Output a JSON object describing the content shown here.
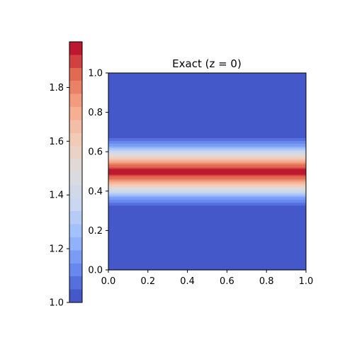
{
  "chart_data": {
    "type": "heatmap",
    "title": "Exact (z = 0)",
    "xlabel": "",
    "ylabel": "",
    "xlim": [
      0.0,
      1.0
    ],
    "ylim": [
      0.0,
      1.0
    ],
    "x_ticks": [
      "0.0",
      "0.2",
      "0.4",
      "0.6",
      "0.8",
      "1.0"
    ],
    "y_ticks": [
      "0.0",
      "0.2",
      "0.4",
      "0.6",
      "0.8",
      "1.0"
    ],
    "colormap": "coolwarm",
    "colormap_stops": [
      "#3b4cc0",
      "#6788ee",
      "#9abbff",
      "#c9d7f0",
      "#dddcdc",
      "#f2cbb7",
      "#f7a889",
      "#e26952",
      "#b40426"
    ],
    "colorbar": {
      "range": [
        1.0,
        1.97
      ],
      "ticks": [
        "1.0",
        "1.2",
        "1.4",
        "1.6",
        "1.8"
      ],
      "placement": "left"
    },
    "field": {
      "description_values": "value varies only with y; constant in x",
      "baseline": 1.0,
      "peak": 1.97,
      "peak_y": 0.5,
      "profile_y": [
        0.0,
        0.3,
        0.33,
        0.36,
        0.39,
        0.42,
        0.45,
        0.48,
        0.5,
        0.52,
        0.55,
        0.58,
        0.61,
        0.64,
        0.67,
        0.7,
        1.0
      ],
      "profile_value": [
        1.0,
        1.0,
        1.05,
        1.15,
        1.3,
        1.5,
        1.72,
        1.9,
        1.97,
        1.9,
        1.72,
        1.5,
        1.3,
        1.15,
        1.05,
        1.0,
        1.0
      ]
    },
    "grid": false
  }
}
